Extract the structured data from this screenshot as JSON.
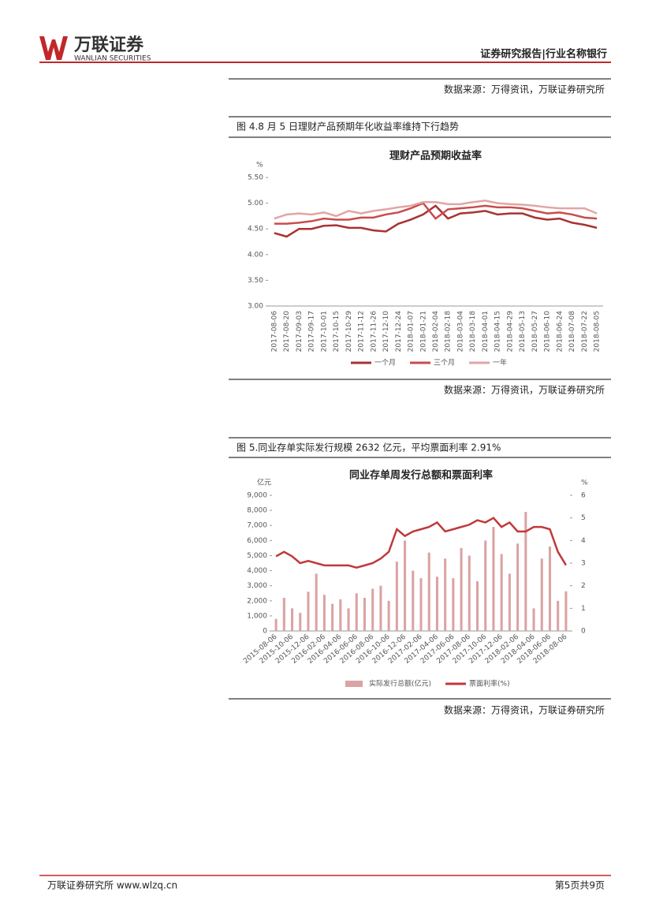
{
  "header": {
    "logo_cn": "万联证券",
    "logo_en": "WANLIAN SECURITIES",
    "report": "证券研究报告|行业名称银行"
  },
  "sources": [
    "数据来源：万得资讯，万联证券研究所",
    "数据来源：万得资讯，万联证券研究所",
    "数据来源：万得资讯，万联证券研究所"
  ],
  "figures": [
    "图 4.8 月 5 日理财产品预期年化收益率维持下行趋势",
    "图 5.同业存单实际发行规模 2632 亿元，平均票面利率 2.91%"
  ],
  "footer": {
    "left": "万联证券研究所 www.wlzq.cn",
    "page": "第5页共9页"
  },
  "chart_data": [
    {
      "type": "line",
      "title": "理财产品预期收益率",
      "y_unit": "%",
      "categories": [
        "2017-08-06",
        "2017-08-20",
        "2017-09-03",
        "2017-09-17",
        "2017-10-01",
        "2017-10-15",
        "2017-10-29",
        "2017-11-12",
        "2017-11-26",
        "2017-12-10",
        "2017-12-24",
        "2018-01-07",
        "2018-01-21",
        "2018-02-04",
        "2018-02-18",
        "2018-03-04",
        "2018-03-18",
        "2018-04-01",
        "2018-04-15",
        "2018-04-29",
        "2018-05-13",
        "2018-05-27",
        "2018-06-10",
        "2018-06-24",
        "2018-07-08",
        "2018-07-22",
        "2018-08-05"
      ],
      "series": [
        {
          "name": "一个月",
          "color": "#a93232",
          "values": [
            4.42,
            4.35,
            4.5,
            4.5,
            4.56,
            4.57,
            4.52,
            4.52,
            4.47,
            4.45,
            4.6,
            4.68,
            4.78,
            4.95,
            4.7,
            4.8,
            4.82,
            4.85,
            4.78,
            4.8,
            4.8,
            4.72,
            4.68,
            4.7,
            4.62,
            4.58,
            4.52
          ]
        },
        {
          "name": "三个月",
          "color": "#c94c4c",
          "values": [
            4.6,
            4.6,
            4.62,
            4.65,
            4.7,
            4.68,
            4.68,
            4.72,
            4.72,
            4.78,
            4.82,
            4.9,
            5.0,
            4.7,
            4.88,
            4.9,
            4.92,
            4.95,
            4.92,
            4.92,
            4.9,
            4.85,
            4.8,
            4.82,
            4.78,
            4.72,
            4.7
          ]
        },
        {
          "name": "一年",
          "color": "#e2a5a5",
          "values": [
            4.7,
            4.78,
            4.8,
            4.78,
            4.82,
            4.75,
            4.85,
            4.8,
            4.85,
            4.88,
            4.92,
            4.95,
            5.02,
            5.02,
            4.98,
            4.98,
            5.02,
            5.05,
            5.0,
            4.98,
            4.97,
            4.95,
            4.92,
            4.9,
            4.9,
            4.9,
            4.8
          ]
        }
      ],
      "ylim": [
        3,
        5.5
      ],
      "yticks": [
        {
          "value": 3,
          "label": "3.00"
        },
        {
          "value": 3.5,
          "label": "3.50"
        },
        {
          "value": 4,
          "label": "4.00"
        },
        {
          "value": 4.5,
          "label": "4.50"
        },
        {
          "value": 5,
          "label": "5.00"
        },
        {
          "value": 5.5,
          "label": "5.50"
        }
      ],
      "grid": false
    },
    {
      "type": "combo",
      "title": "同业存单周发行总额和票面利率",
      "y_unit": "亿元",
      "y2_unit": "%",
      "categories": [
        "2015-08-06",
        null,
        "2015-10-06",
        null,
        "2015-12-06",
        null,
        "2016-02-06",
        null,
        "2016-04-06",
        null,
        "2016-06-06",
        null,
        "2016-08-06",
        null,
        "2016-10-06",
        null,
        "2016-12-06",
        null,
        "2017-02-06",
        null,
        "2017-04-06",
        null,
        "2017-06-06",
        null,
        "2017-08-06",
        null,
        "2017-10-06",
        null,
        "2017-12-06",
        null,
        "2018-02-06",
        null,
        "2018-04-06",
        null,
        "2018-06-06",
        null,
        "2018-08-06"
      ],
      "series": [
        {
          "name": "实际发行总额(亿元)",
          "type": "bar",
          "color": "#dba3a3",
          "values": [
            800,
            2200,
            1500,
            1200,
            2600,
            3800,
            2400,
            1800,
            2100,
            1500,
            2500,
            2200,
            2800,
            3000,
            2000,
            4600,
            6000,
            4000,
            3500,
            5200,
            3600,
            4800,
            3500,
            5500,
            5000,
            3300,
            6000,
            6900,
            5100,
            3800,
            5800,
            7900,
            1500,
            4800,
            5600,
            2000,
            2632
          ]
        },
        {
          "name": "票面利率(%)",
          "type": "line",
          "axis": "y2",
          "color": "#c0393b",
          "values": [
            3.3,
            3.5,
            3.3,
            3.0,
            3.1,
            3.0,
            2.9,
            2.9,
            2.9,
            2.9,
            2.8,
            2.9,
            3.0,
            3.2,
            3.5,
            4.5,
            4.2,
            4.4,
            4.5,
            4.6,
            4.8,
            4.4,
            4.5,
            4.6,
            4.7,
            4.9,
            4.8,
            5.0,
            4.6,
            4.8,
            4.4,
            4.4,
            4.6,
            4.6,
            4.5,
            3.5,
            2.91
          ]
        }
      ],
      "ylim": [
        0,
        9000
      ],
      "yticks": [
        0,
        {
          "value": 1000,
          "label": "1,000"
        },
        {
          "value": 2000,
          "label": "2,000"
        },
        {
          "value": 3000,
          "label": "3,000"
        },
        {
          "value": 4000,
          "label": "4,000"
        },
        {
          "value": 5000,
          "label": "5,000"
        },
        {
          "value": 6000,
          "label": "6,000"
        },
        {
          "value": 7000,
          "label": "7,000"
        },
        {
          "value": 8000,
          "label": "8,000"
        },
        {
          "value": 9000,
          "label": "9,000"
        }
      ],
      "y2lim": [
        0,
        6
      ],
      "y2ticks": [
        0,
        1,
        2,
        3,
        4,
        5,
        6
      ],
      "grid": false
    }
  ]
}
